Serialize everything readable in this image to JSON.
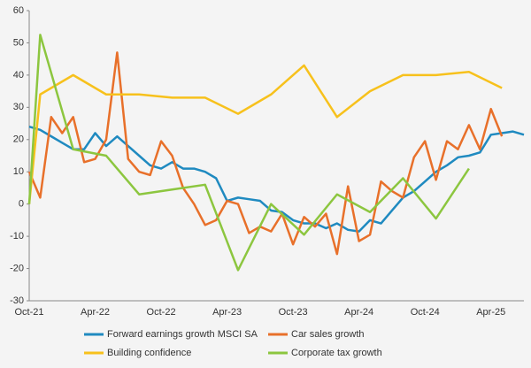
{
  "chart_data": {
    "type": "line",
    "categories": [
      "Oct-21",
      null,
      null,
      null,
      null,
      null,
      "Apr-22",
      null,
      null,
      null,
      null,
      null,
      "Oct-22",
      null,
      null,
      null,
      null,
      null,
      "Apr-23",
      null,
      null,
      null,
      null,
      null,
      "Oct-23",
      null,
      null,
      null,
      null,
      null,
      "Apr-24",
      null,
      null,
      null,
      null,
      null,
      "Oct-24",
      null,
      null,
      null,
      null,
      null,
      "Apr-25",
      null,
      null,
      null
    ],
    "series": [
      {
        "name": "Forward earnings growth MSCI SA",
        "color": "#1f8ac0",
        "values": [
          24,
          23,
          21,
          19,
          17,
          17,
          22,
          18,
          21,
          18,
          15,
          12,
          11,
          13,
          11,
          11,
          10,
          8,
          1,
          2,
          1.5,
          1,
          -2,
          -2.5,
          -5,
          -6,
          -6,
          -7.5,
          -6,
          -8,
          -8.5,
          -5,
          -6,
          -2,
          2,
          4,
          7,
          10,
          12,
          14.5,
          15,
          16,
          21.5,
          22,
          22.5,
          21.5
        ]
      },
      {
        "name": "Car sales growth",
        "color": "#e8702a",
        "values": [
          10,
          2,
          27,
          22,
          27,
          13,
          14,
          20,
          47,
          14,
          10,
          9,
          19.5,
          15,
          5,
          0,
          -6.5,
          -5,
          1,
          0,
          -9,
          -7,
          -8.5,
          -3,
          -12.5,
          -4,
          -7,
          -3,
          -15.5,
          5.5,
          -11.5,
          -9.5,
          7,
          4,
          2,
          14.5,
          19.5,
          7.5,
          19.5,
          17,
          24.5,
          17,
          29.5,
          21,
          null,
          null
        ]
      },
      {
        "name": "Building confidence",
        "color": "#f7c11c",
        "values": [
          0,
          34,
          null,
          null,
          40,
          null,
          null,
          34,
          null,
          null,
          34,
          null,
          null,
          33,
          null,
          null,
          33,
          null,
          null,
          28,
          null,
          null,
          34,
          null,
          null,
          43,
          null,
          null,
          27,
          null,
          null,
          35,
          null,
          null,
          40,
          null,
          null,
          40,
          null,
          null,
          41,
          null,
          null,
          36,
          null,
          null
        ]
      },
      {
        "name": "Corporate tax growth",
        "color": "#8cc63f",
        "values": [
          0,
          52.5,
          null,
          null,
          17,
          null,
          null,
          15,
          null,
          null,
          3,
          null,
          null,
          4.5,
          null,
          null,
          6,
          null,
          null,
          -20.5,
          null,
          null,
          0,
          null,
          null,
          -9.5,
          null,
          null,
          3,
          null,
          null,
          -2.5,
          null,
          null,
          8,
          null,
          null,
          -4.5,
          null,
          null,
          11,
          null,
          null,
          null,
          null,
          null
        ]
      }
    ],
    "ylim": [
      -30,
      60
    ],
    "yticks": [
      -30,
      -20,
      -10,
      0,
      10,
      20,
      30,
      40,
      50,
      60
    ],
    "grid": false,
    "connect_gaps": true,
    "legend": "bottom"
  }
}
